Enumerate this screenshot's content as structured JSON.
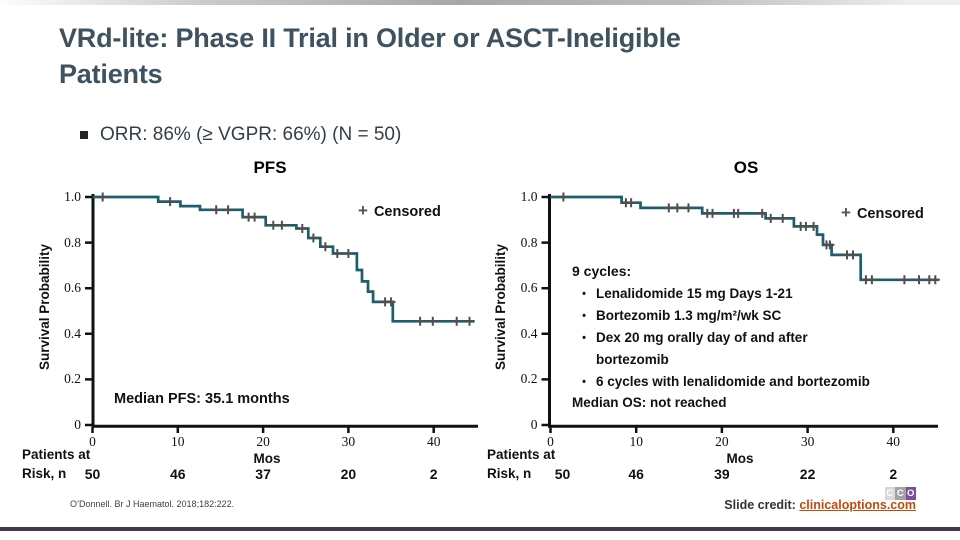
{
  "slide": {
    "title_line1": "VRd-lite: Phase II Trial in Older or ASCT-Ineligible",
    "title_line2": "Patients",
    "orr_bullet": "ORR: 86% (≥ VGPR: 66%) (N = 50)",
    "reference": "O’Donnell. Br J Haematol. 2018;182:222.",
    "credit_label": "Slide credit: ",
    "credit_link": "clinicaloptions.com",
    "logo_letters": [
      "C",
      "C",
      "O"
    ]
  },
  "colors": {
    "title": "#3e5260",
    "curve": "#1d5e6d",
    "censor": "#4f4f4f",
    "axis": "#111111",
    "link": "#c04a10",
    "bottom_rule": "#463455",
    "logo_gray_light": "#d9d9d9",
    "logo_gray": "#a3a3a3",
    "logo_purple": "#7d4f9e"
  },
  "treatment_box": {
    "header": "9 cycles:",
    "bullets": [
      {
        "text": "Lenalidomide 15 mg Days 1-21"
      },
      {
        "text": "Bortezomib 1.3 mg/m²/wk SC"
      },
      {
        "text": "Dex 20 mg orally day of and after",
        "cont": "bortezomib"
      },
      {
        "text": "6 cycles with lenalidomide and bortezomib"
      }
    ],
    "footer": "Median OS: not reached"
  },
  "chart_data": [
    {
      "id": "pfs",
      "type": "line",
      "title": "PFS",
      "legend_marker": "+",
      "legend_label": "Censored",
      "xlabel": "Mos",
      "ylabel": "Survival Probability",
      "xlim": [
        0,
        45
      ],
      "ylim": [
        0,
        1.0
      ],
      "xticks": [
        0,
        10,
        20,
        30,
        40
      ],
      "ytick_values": [
        1.0,
        0.8,
        0.6,
        0.4,
        0.2,
        0
      ],
      "ytick_labels": [
        "1.0",
        "0.8",
        "0.6",
        "0.4",
        "0.2",
        "0"
      ],
      "annotation": "Median PFS: 35.1 months",
      "risk_label_line1": "Patients at",
      "risk_label_line2": "Risk, n",
      "risk_values": [
        50,
        46,
        37,
        20,
        2
      ],
      "steps": [
        [
          0,
          1.0
        ],
        [
          7.7,
          0.98
        ],
        [
          10.3,
          0.96
        ],
        [
          12.6,
          0.944
        ],
        [
          17.6,
          0.912
        ],
        [
          20.3,
          0.876
        ],
        [
          23.9,
          0.862
        ],
        [
          25.3,
          0.82
        ],
        [
          26.7,
          0.782
        ],
        [
          28.2,
          0.752
        ],
        [
          31.0,
          0.68
        ],
        [
          31.6,
          0.63
        ],
        [
          32.3,
          0.585
        ],
        [
          32.9,
          0.54
        ],
        [
          35.2,
          0.455
        ]
      ],
      "end_mos": 44.8,
      "censors": [
        [
          1.2,
          1.0
        ],
        [
          9.1,
          0.98
        ],
        [
          14.5,
          0.944
        ],
        [
          15.9,
          0.944
        ],
        [
          18.3,
          0.912
        ],
        [
          19.0,
          0.912
        ],
        [
          21.2,
          0.876
        ],
        [
          22.2,
          0.876
        ],
        [
          24.6,
          0.862
        ],
        [
          25.9,
          0.82
        ],
        [
          27.3,
          0.782
        ],
        [
          28.7,
          0.752
        ],
        [
          30.0,
          0.752
        ],
        [
          34.3,
          0.54
        ],
        [
          35.0,
          0.54
        ],
        [
          38.4,
          0.455
        ],
        [
          39.9,
          0.455
        ],
        [
          42.7,
          0.455
        ],
        [
          44.2,
          0.455
        ]
      ]
    },
    {
      "id": "os",
      "type": "line",
      "title": "OS",
      "legend_marker": "+",
      "legend_label": "Censored",
      "xlabel": "Mos",
      "ylabel": "Survival Probability",
      "xlim": [
        0,
        45
      ],
      "ylim": [
        0,
        1.0
      ],
      "xticks": [
        0,
        10,
        20,
        30,
        40
      ],
      "ytick_values": [
        1.0,
        0.8,
        0.6,
        0.4,
        0.2,
        0
      ],
      "ytick_labels": [
        "1.0",
        "0.8",
        "0.6",
        "0.4",
        "0.2",
        "0"
      ],
      "annotation": "",
      "risk_label_line1": "Patients at",
      "risk_label_line2": "Risk, n",
      "risk_values": [
        50,
        46,
        39,
        22,
        2
      ],
      "steps": [
        [
          0,
          1.0
        ],
        [
          8.3,
          0.975
        ],
        [
          10.5,
          0.952
        ],
        [
          17.7,
          0.928
        ],
        [
          25.1,
          0.906
        ],
        [
          28.4,
          0.871
        ],
        [
          31.1,
          0.835
        ],
        [
          31.8,
          0.79
        ],
        [
          32.8,
          0.746
        ],
        [
          36.2,
          0.637
        ]
      ],
      "end_mos": 45.3,
      "censors": [
        [
          1.5,
          1.0
        ],
        [
          8.8,
          0.975
        ],
        [
          9.4,
          0.975
        ],
        [
          13.8,
          0.952
        ],
        [
          14.8,
          0.952
        ],
        [
          16.1,
          0.952
        ],
        [
          18.3,
          0.928
        ],
        [
          18.9,
          0.928
        ],
        [
          21.4,
          0.928
        ],
        [
          21.9,
          0.928
        ],
        [
          24.7,
          0.928
        ],
        [
          25.7,
          0.906
        ],
        [
          27.1,
          0.906
        ],
        [
          29.2,
          0.871
        ],
        [
          29.8,
          0.871
        ],
        [
          30.7,
          0.871
        ],
        [
          32.2,
          0.79
        ],
        [
          32.6,
          0.79
        ],
        [
          34.6,
          0.746
        ],
        [
          35.3,
          0.746
        ],
        [
          36.8,
          0.637
        ],
        [
          37.5,
          0.637
        ],
        [
          41.3,
          0.637
        ],
        [
          43.0,
          0.637
        ],
        [
          44.2,
          0.637
        ],
        [
          44.9,
          0.637
        ]
      ]
    }
  ]
}
